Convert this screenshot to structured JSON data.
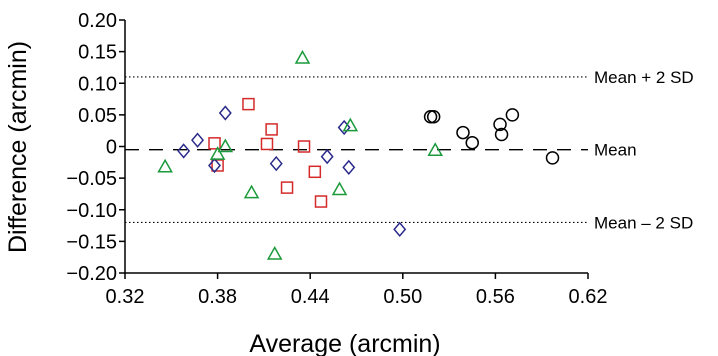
{
  "chart_data": {
    "type": "scatter",
    "title": "",
    "xlabel": "Average (arcmin)",
    "ylabel": "Difference (arcmin)",
    "xlim": [
      0.32,
      0.62
    ],
    "ylim": [
      -0.2,
      0.2
    ],
    "xticks": [
      "0.32",
      "0.38",
      "0.44",
      "0.50",
      "0.56",
      "0.62"
    ],
    "xtick_values": [
      0.32,
      0.38,
      0.44,
      0.5,
      0.56,
      0.62
    ],
    "yticks": [
      "0.20",
      "0.15",
      "0.10",
      "0.05",
      "0",
      "−0.05",
      "−0.10",
      "−0.15",
      "−0.20"
    ],
    "ytick_values": [
      0.2,
      0.15,
      0.1,
      0.05,
      0,
      -0.05,
      -0.1,
      -0.15,
      -0.2
    ],
    "grid": false,
    "reference_lines": [
      {
        "label": "Mean + 2 SD",
        "y": 0.11,
        "style": "dotted"
      },
      {
        "label": "Mean",
        "y": -0.005,
        "style": "dashed"
      },
      {
        "label": "Mean – 2 SD",
        "y": -0.12,
        "style": "dotted"
      }
    ],
    "series": [
      {
        "marker": "square",
        "color": "#d42a2a",
        "points": [
          [
            0.378,
            0.005
          ],
          [
            0.38,
            -0.03
          ],
          [
            0.4,
            0.067
          ],
          [
            0.412,
            0.004
          ],
          [
            0.415,
            0.027
          ],
          [
            0.425,
            -0.065
          ],
          [
            0.436,
            0.0
          ],
          [
            0.443,
            -0.04
          ],
          [
            0.447,
            -0.087
          ]
        ]
      },
      {
        "marker": "diamond",
        "color": "#2a2a8a",
        "points": [
          [
            0.358,
            -0.007
          ],
          [
            0.367,
            0.01
          ],
          [
            0.378,
            -0.03
          ],
          [
            0.385,
            0.053
          ],
          [
            0.418,
            -0.027
          ],
          [
            0.451,
            -0.016
          ],
          [
            0.462,
            0.03
          ],
          [
            0.465,
            -0.033
          ],
          [
            0.498,
            -0.131
          ]
        ]
      },
      {
        "marker": "triangle",
        "color": "#1a9a3a",
        "points": [
          [
            0.346,
            -0.032
          ],
          [
            0.38,
            -0.012
          ],
          [
            0.385,
            0.0
          ],
          [
            0.402,
            -0.073
          ],
          [
            0.417,
            -0.17
          ],
          [
            0.435,
            0.14
          ],
          [
            0.459,
            -0.068
          ],
          [
            0.466,
            0.033
          ],
          [
            0.521,
            -0.006
          ]
        ]
      },
      {
        "marker": "circle",
        "color": "#000000",
        "points": [
          [
            0.518,
            0.047
          ],
          [
            0.52,
            0.047
          ],
          [
            0.539,
            0.022
          ],
          [
            0.545,
            0.006
          ],
          [
            0.563,
            0.035
          ],
          [
            0.564,
            0.019
          ],
          [
            0.571,
            0.05
          ],
          [
            0.597,
            -0.018
          ]
        ]
      }
    ]
  }
}
